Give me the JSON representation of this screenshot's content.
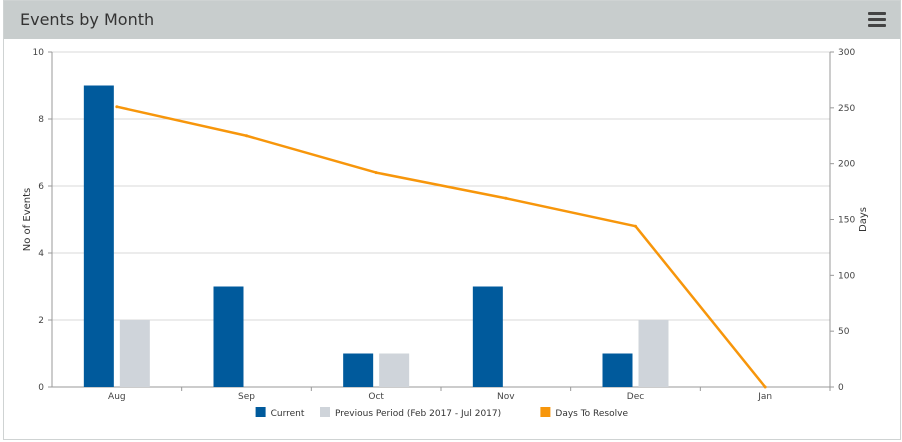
{
  "panel": {
    "title": "Events by Month",
    "menu_icon": "hamburger-menu-icon"
  },
  "chart_data": {
    "type": "bar+line",
    "categories": [
      "Aug",
      "Sep",
      "Oct",
      "Nov",
      "Dec",
      "Jan"
    ],
    "series": [
      {
        "name": "Current",
        "type": "bar",
        "axis": "left",
        "color": "#005a9c",
        "values": [
          9,
          3,
          1,
          3,
          1,
          0
        ]
      },
      {
        "name": "Previous Period (Feb 2017 - Jul 2017)",
        "type": "bar",
        "axis": "left",
        "color": "#cfd4da",
        "values": [
          2,
          0,
          1,
          0,
          2,
          0
        ]
      },
      {
        "name": "Days To Resolve",
        "type": "line",
        "axis": "right",
        "color": "#f7960b",
        "values": [
          251,
          225,
          192,
          169,
          144,
          0
        ]
      }
    ],
    "ylabel": "No of Events",
    "y2label": "Days",
    "ylim": [
      0,
      10
    ],
    "y2lim": [
      0,
      300
    ],
    "yticks": [
      "0",
      "2",
      "4",
      "6",
      "8",
      "10"
    ],
    "y2ticks": [
      "0",
      "50",
      "100",
      "150",
      "200",
      "250",
      "300"
    ],
    "grid": true,
    "legend_position": "bottom"
  }
}
